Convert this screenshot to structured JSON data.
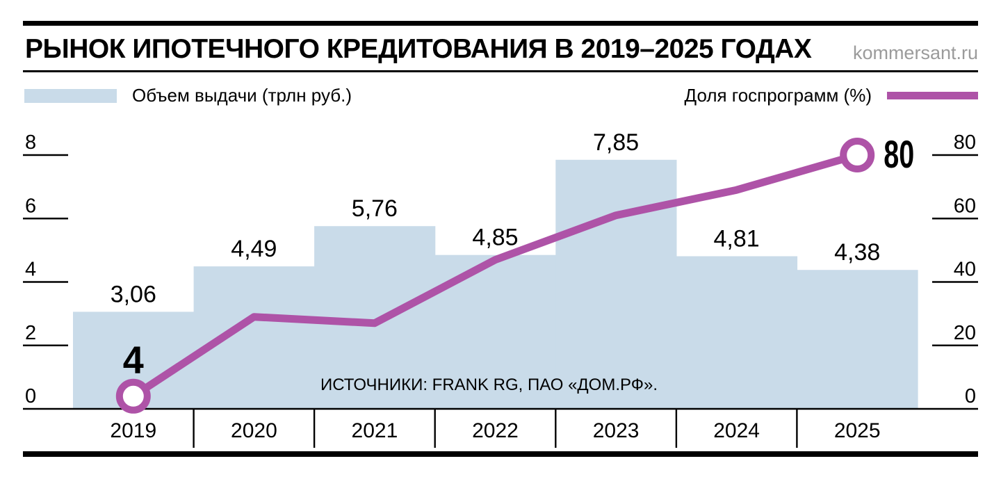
{
  "header": {
    "title": "РЫНОК ИПОТЕЧНОГО КРЕДИТОВАНИЯ В 2019–2025 ГОДАХ",
    "site": "kommersant.ru"
  },
  "legend": {
    "bars_label": "Объем выдачи (трлн руб.)",
    "line_label": "Доля госпрограмм (%)"
  },
  "source": {
    "text": "ИСТОЧНИКИ: FRANK RG, ПАО «ДОМ.РФ»."
  },
  "colors": {
    "bar_fill": "#c9dbe9",
    "line": "#ae53a7",
    "site_text": "#9b9b9b",
    "text": "#000000"
  },
  "chart_data": {
    "type": "combo",
    "categories": [
      "2019",
      "2020",
      "2021",
      "2022",
      "2023",
      "2024",
      "2025"
    ],
    "series": [
      {
        "name": "Объем выдачи (трлн руб.)",
        "type": "bar",
        "axis": "left",
        "values": [
          3.06,
          4.49,
          5.76,
          4.85,
          7.85,
          4.81,
          4.38
        ],
        "value_labels": [
          "3,06",
          "4,49",
          "5,76",
          "4,85",
          "7,85",
          "4,81",
          "4,38"
        ]
      },
      {
        "name": "Доля госпрограмм (%)",
        "type": "line",
        "axis": "right",
        "values": [
          4,
          29,
          27,
          47,
          61,
          69,
          80
        ],
        "point_labels": [
          "4",
          "",
          "",
          "",
          "",
          "",
          "80"
        ]
      }
    ],
    "left_axis": {
      "ticks": [
        0,
        2,
        4,
        6,
        8
      ],
      "range": [
        0,
        8.8
      ]
    },
    "right_axis": {
      "ticks": [
        0,
        20,
        40,
        60,
        80
      ],
      "range": [
        0,
        88
      ]
    },
    "grid": "off",
    "legend_position": "top"
  }
}
